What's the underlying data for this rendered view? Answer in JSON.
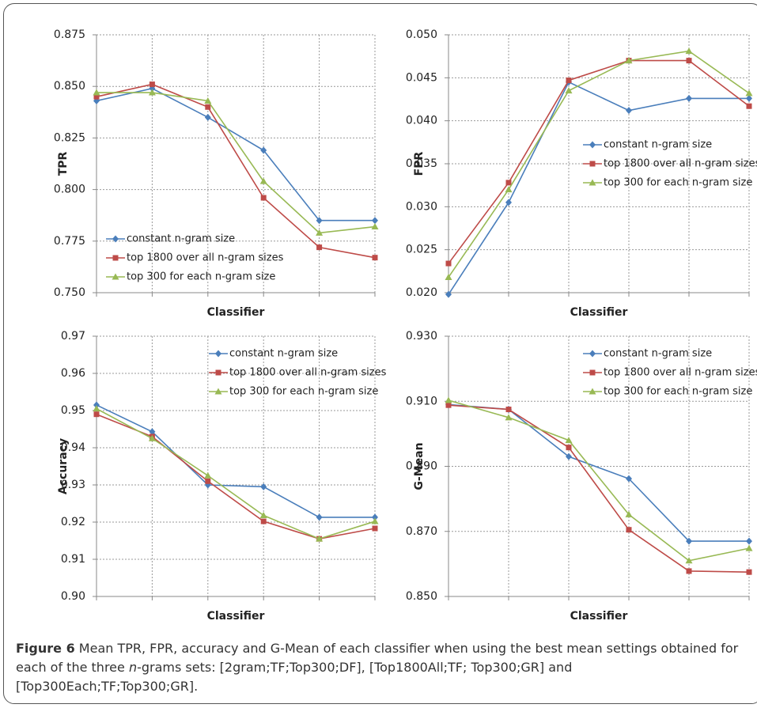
{
  "chart_data": [
    {
      "type": "line",
      "ylabel": "TPR",
      "xlabel": "Classifier",
      "categories": [
        null,
        null,
        null,
        null,
        null,
        null
      ],
      "ylim": [
        0.75,
        0.875
      ],
      "yticks": [
        {
          "value": 0.75,
          "label": "0.750"
        },
        0.775,
        {
          "value": 0.8,
          "label": "0.800"
        },
        0.825,
        {
          "value": 0.85,
          "label": "0.850"
        },
        0.875
      ],
      "grid": true,
      "legend": "lower left",
      "series": [
        {
          "name": "constant n-gram size",
          "color": "#4a7ebb",
          "marker": "diamond",
          "values": [
            0.843,
            0.849,
            0.835,
            0.819,
            0.785,
            0.785
          ]
        },
        {
          "name": "top 1800 over all n-gram sizes",
          "color": "#be4b48",
          "marker": "square",
          "values": [
            0.845,
            0.851,
            0.84,
            0.796,
            0.772,
            0.767
          ]
        },
        {
          "name": "top 300 for each n-gram size",
          "color": "#98b954",
          "marker": "triangle",
          "values": [
            0.847,
            0.847,
            0.843,
            0.804,
            0.779,
            0.782
          ]
        }
      ]
    },
    {
      "type": "line",
      "ylabel": "FPR",
      "xlabel": "Classifier",
      "categories": [
        null,
        null,
        null,
        null,
        null,
        null
      ],
      "ylim": [
        0.02,
        0.05
      ],
      "yticks": [
        {
          "value": 0.02,
          "label": "0.020"
        },
        0.025,
        {
          "value": 0.03,
          "label": "0.030"
        },
        0.035,
        {
          "value": 0.04,
          "label": "0.040"
        },
        0.045,
        {
          "value": 0.05,
          "label": "0.050"
        }
      ],
      "grid": true,
      "legend": "center right",
      "series": [
        {
          "name": "constant n-gram size",
          "color": "#4a7ebb",
          "marker": "diamond",
          "values": [
            0.0198,
            0.0305,
            0.0445,
            0.0412,
            0.0426,
            0.0426
          ]
        },
        {
          "name": "top 1800 over all n-gram sizes",
          "color": "#be4b48",
          "marker": "square",
          "values": [
            0.0234,
            0.0328,
            0.0447,
            0.047,
            0.047,
            0.0417
          ]
        },
        {
          "name": "top 300 for each n-gram size",
          "color": "#98b954",
          "marker": "triangle",
          "values": [
            0.0218,
            0.032,
            0.0435,
            0.047,
            0.0481,
            0.0432
          ]
        }
      ]
    },
    {
      "type": "line",
      "ylabel": "Accuracy",
      "xlabel": "Classifier",
      "categories": [
        null,
        null,
        null,
        null,
        null,
        null
      ],
      "ylim": [
        0.9,
        0.97
      ],
      "yticks": [
        {
          "value": 0.9,
          "label": "0.90"
        },
        0.91,
        0.92,
        0.93,
        0.94,
        0.95,
        0.96,
        0.97
      ],
      "grid": true,
      "legend": "upper right",
      "series": [
        {
          "name": "constant n-gram size",
          "color": "#4a7ebb",
          "marker": "diamond",
          "values": [
            0.9515,
            0.9443,
            0.93,
            0.9295,
            0.9213,
            0.9213
          ]
        },
        {
          "name": "top 1800 over all n-gram sizes",
          "color": "#be4b48",
          "marker": "square",
          "values": [
            0.949,
            0.943,
            0.931,
            0.9202,
            0.9155,
            0.9183
          ]
        },
        {
          "name": "top 300 for each n-gram size",
          "color": "#98b954",
          "marker": "triangle",
          "values": [
            0.9505,
            0.9425,
            0.9325,
            0.9218,
            0.9155,
            0.9202
          ]
        }
      ]
    },
    {
      "type": "line",
      "ylabel": "G-Mean",
      "xlabel": "Classifier",
      "categories": [
        null,
        null,
        null,
        null,
        null,
        null
      ],
      "ylim": [
        0.85,
        0.93
      ],
      "yticks": [
        {
          "value": 0.85,
          "label": "0.850"
        },
        {
          "value": 0.87,
          "label": "0.870"
        },
        {
          "value": 0.89,
          "label": "0.890"
        },
        {
          "value": 0.91,
          "label": "0.910"
        },
        {
          "value": 0.93,
          "label": "0.930"
        }
      ],
      "grid": true,
      "legend": "upper right",
      "series": [
        {
          "name": "constant n-gram size",
          "color": "#4a7ebb",
          "marker": "diamond",
          "values": [
            0.909,
            0.9075,
            0.893,
            0.8862,
            0.867,
            0.867
          ]
        },
        {
          "name": "top 1800 over all n-gram sizes",
          "color": "#be4b48",
          "marker": "square",
          "values": [
            0.9088,
            0.9075,
            0.8958,
            0.8705,
            0.8578,
            0.8575
          ]
        },
        {
          "name": "top 300 for each n-gram size",
          "color": "#98b954",
          "marker": "triangle",
          "values": [
            0.9103,
            0.905,
            0.898,
            0.8752,
            0.861,
            0.8648
          ]
        }
      ]
    }
  ],
  "caption": {
    "label": "Figure 6",
    "text_before": " Mean TPR, FPR, accuracy and G-Mean of each classifier when using the best mean settings obtained for each of the three ",
    "italic": "n",
    "text_after": "-grams sets: [2gram;TF;Top300;DF], [Top1800All;TF; Top300;GR] and [Top300Each;TF;Top300;GR]."
  }
}
